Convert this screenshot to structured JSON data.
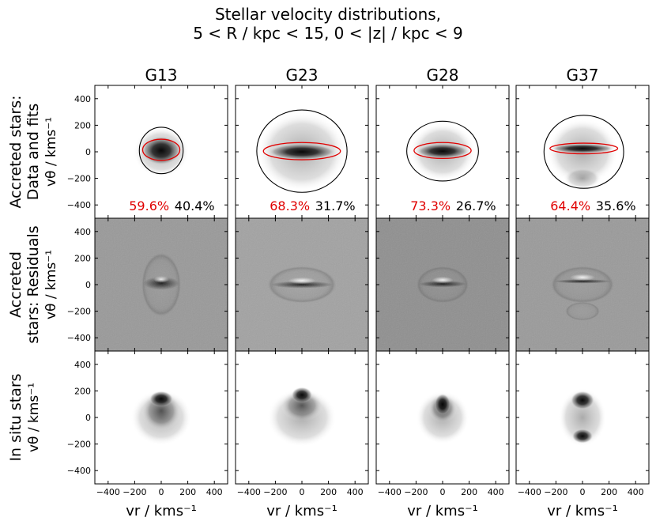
{
  "chart_data": {
    "type": "heatmap",
    "title_line1": "Stellar velocity distributions,",
    "title_line2": "5 < R / kpc < 15, 0 < |z| / kpc < 9",
    "columns": [
      "G13",
      "G23",
      "G28",
      "G37"
    ],
    "rows": [
      {
        "label_line1": "Accreted stars:",
        "label_line2": "Data and fits",
        "kind": "data"
      },
      {
        "label_line1": "Accreted",
        "label_line2": "stars: Residuals",
        "kind": "residuals"
      },
      {
        "label_line1": "In situ stars",
        "label_line2": "",
        "kind": "insitu"
      }
    ],
    "ylabel": "vθ / kms⁻¹",
    "xlabel": "vr / kms⁻¹",
    "xlim": [
      -500,
      500
    ],
    "ylim": [
      -500,
      500
    ],
    "xticks": [
      -400,
      -200,
      0,
      200,
      400
    ],
    "yticks": [
      -400,
      -200,
      0,
      200,
      400
    ],
    "fractions": [
      {
        "galaxy": "G13",
        "red": "59.6%",
        "black": "40.4%"
      },
      {
        "galaxy": "G23",
        "red": "68.3%",
        "black": "31.7%"
      },
      {
        "galaxy": "G28",
        "red": "73.3%",
        "black": "26.7%"
      },
      {
        "galaxy": "G37",
        "red": "64.4%",
        "black": "35.6%"
      }
    ],
    "fits": [
      {
        "galaxy": "G13",
        "black": {
          "cx": 0,
          "cy": 10,
          "sx": 165,
          "sy": 175
        },
        "red": {
          "cx": 0,
          "cy": 15,
          "sx": 140,
          "sy": 80
        }
      },
      {
        "galaxy": "G23",
        "black": {
          "cx": 0,
          "cy": 5,
          "sx": 340,
          "sy": 310
        },
        "red": {
          "cx": 0,
          "cy": 5,
          "sx": 290,
          "sy": 65
        }
      },
      {
        "galaxy": "G28",
        "black": {
          "cx": 0,
          "cy": 5,
          "sx": 270,
          "sy": 225
        },
        "red": {
          "cx": 0,
          "cy": 10,
          "sx": 215,
          "sy": 60
        }
      },
      {
        "galaxy": "G37",
        "black": {
          "cx": 10,
          "cy": 0,
          "sx": 300,
          "sy": 275
        },
        "red": {
          "cx": 10,
          "cy": 25,
          "sx": 255,
          "sy": 40
        }
      }
    ],
    "colors": {
      "red_fit": "#e00000",
      "black_fit": "#000000",
      "residual_bg": "#999999"
    }
  }
}
